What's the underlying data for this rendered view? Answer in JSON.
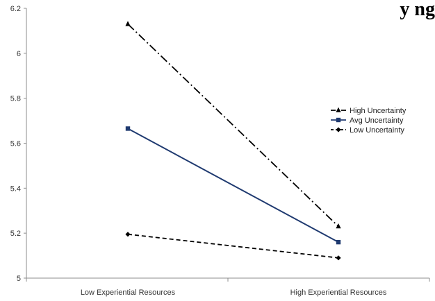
{
  "title_fragment": "y  ng",
  "chart_data": {
    "type": "line",
    "categories": [
      "Low Experiential Resources",
      "High Experiential Resources"
    ],
    "ylim": [
      5,
      6.2
    ],
    "yticks": [
      "5",
      "5.2",
      "5.4",
      "5.6",
      "5.8",
      "6",
      "6.2"
    ],
    "grid": false,
    "legend_position": "right",
    "series": [
      {
        "name": "High Uncertainty",
        "values": [
          6.13,
          5.23
        ],
        "color": "#000000",
        "dash": "dash-dot",
        "marker": "triangle"
      },
      {
        "name": "Avg Uncertainty",
        "values": [
          5.665,
          5.16
        ],
        "color": "#1f3a70",
        "dash": "solid",
        "marker": "square"
      },
      {
        "name": "Low Uncertainty",
        "values": [
          5.195,
          5.09
        ],
        "color": "#000000",
        "dash": "dashed",
        "marker": "diamond"
      }
    ]
  }
}
